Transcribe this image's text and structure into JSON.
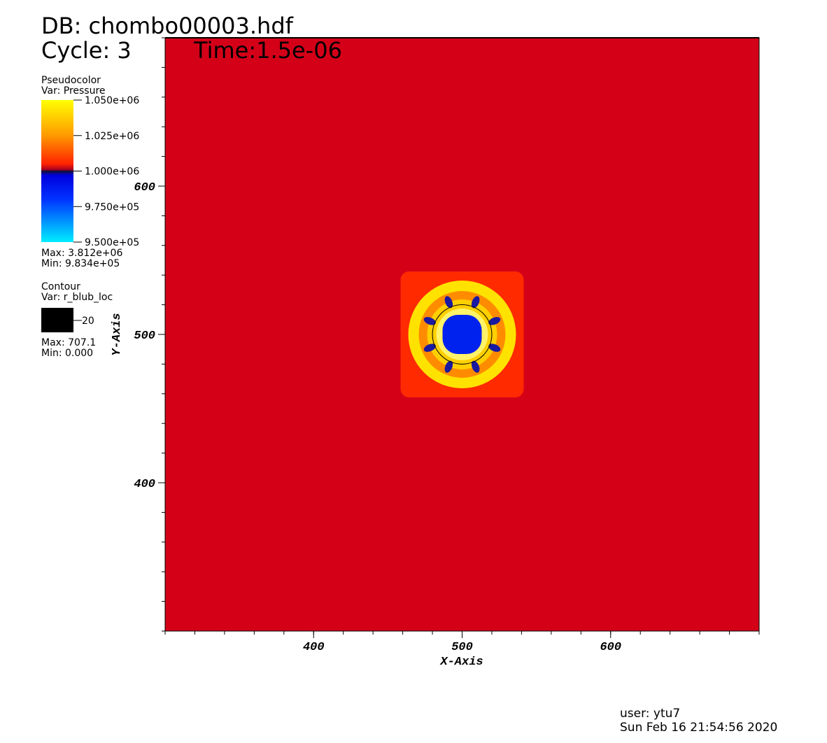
{
  "chart_data": {
    "type": "pseudocolor",
    "title": "DB: chombo00003.hdf",
    "cycle": "Cycle: 3",
    "time": "Time:1.5e-06",
    "x_label": "X-Axis",
    "y_label": "Y-Axis",
    "xlim": [
      300,
      700
    ],
    "ylim": [
      300,
      700
    ],
    "xticks": [
      400,
      500,
      600
    ],
    "yticks": [
      400,
      500,
      600
    ],
    "legend": {
      "plot": "Pseudocolor",
      "var": "Var: Pressure",
      "range": [
        950000,
        1050000
      ],
      "ticks": [
        {
          "value": 1050000,
          "label": "1.050e+06"
        },
        {
          "value": 1025000,
          "label": "1.025e+06"
        },
        {
          "value": 1000000,
          "label": "1.000e+06"
        },
        {
          "value": 975000,
          "label": "9.750e+05"
        },
        {
          "value": 950000,
          "label": "9.500e+05"
        }
      ],
      "max": "Max:  3.812e+06",
      "min": "Min:  9.834e+05"
    },
    "contour": {
      "plot": "Contour",
      "var": "Var: r_blub_loc",
      "levels": [
        20
      ],
      "max": "Max:  707.1",
      "min": "Min:  0.000"
    },
    "user": "user: ytu7",
    "date": "Sun Feb 16 21:54:56 2020"
  }
}
